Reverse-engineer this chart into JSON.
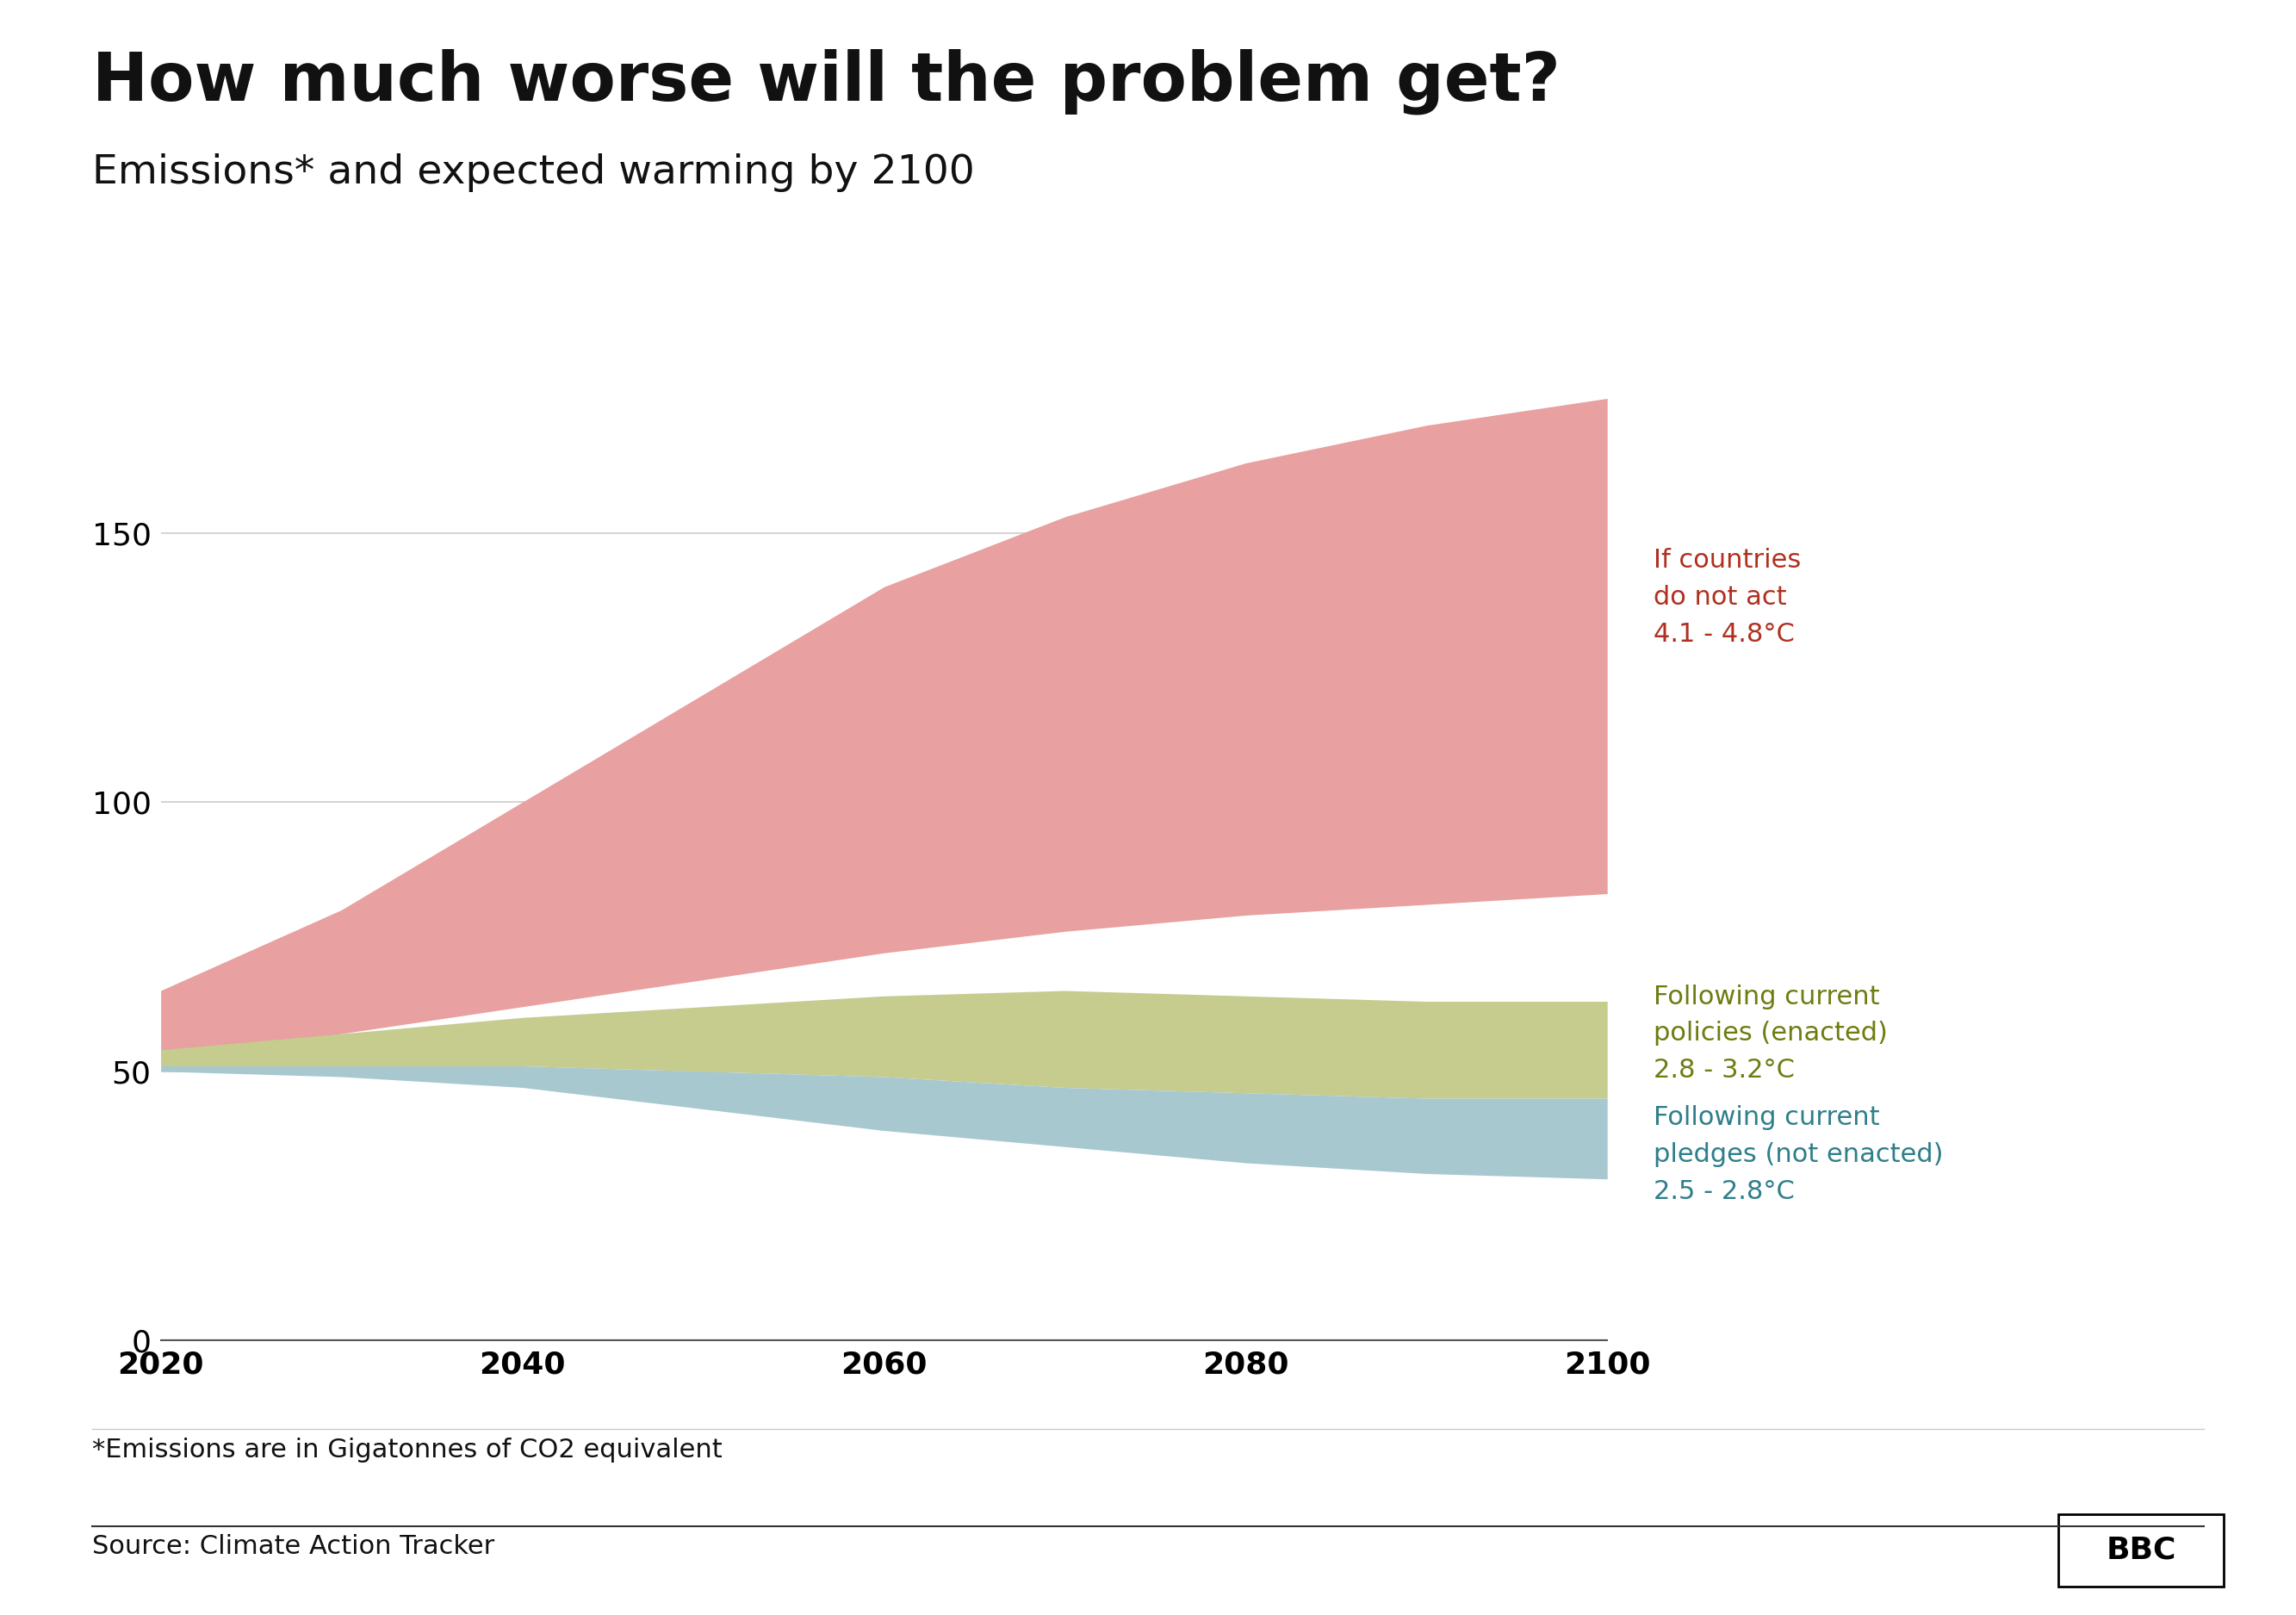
{
  "title": "How much worse will the problem get?",
  "subtitle": "Emissions* and expected warming by 2100",
  "years": [
    2020,
    2030,
    2040,
    2050,
    2060,
    2070,
    2080,
    2090,
    2100
  ],
  "no_act_upper": [
    65,
    80,
    100,
    120,
    140,
    153,
    163,
    170,
    175
  ],
  "no_act_lower": [
    52,
    57,
    62,
    67,
    72,
    76,
    79,
    81,
    83
  ],
  "current_policies_upper": [
    54,
    57,
    60,
    62,
    64,
    65,
    64,
    63,
    63
  ],
  "current_policies_lower": [
    51,
    51,
    51,
    50,
    49,
    47,
    46,
    45,
    45
  ],
  "current_pledges_upper": [
    51,
    51,
    51,
    50,
    49,
    47,
    46,
    45,
    45
  ],
  "current_pledges_lower": [
    50,
    49,
    47,
    43,
    39,
    36,
    33,
    31,
    30
  ],
  "no_act_color": "#e8a0a0",
  "current_policies_color": "#c5cc8e",
  "current_pledges_color": "#a8c8d0",
  "no_act_label_line1": "If countries",
  "no_act_label_line2": "do not act",
  "no_act_label_line3": "4.1 - 4.8°C",
  "policies_label_line1": "Following current",
  "policies_label_line2": "policies (enacted)",
  "policies_label_line3": "2.8 - 3.2°C",
  "pledges_label_line1": "Following current",
  "pledges_label_line2": "pledges (not enacted)",
  "pledges_label_line3": "2.5 - 2.8°C",
  "no_act_label_color": "#b03020",
  "policies_label_color": "#6e7c10",
  "pledges_label_color": "#2e7f8a",
  "footnote": "*Emissions are in Gigatonnes of CO2 equivalent",
  "source": "Source: Climate Action Tracker",
  "background_color": "#ffffff",
  "ylim": [
    0,
    180
  ],
  "yticks": [
    0,
    50,
    100,
    150
  ],
  "xticks": [
    2020,
    2040,
    2060,
    2080,
    2100
  ]
}
